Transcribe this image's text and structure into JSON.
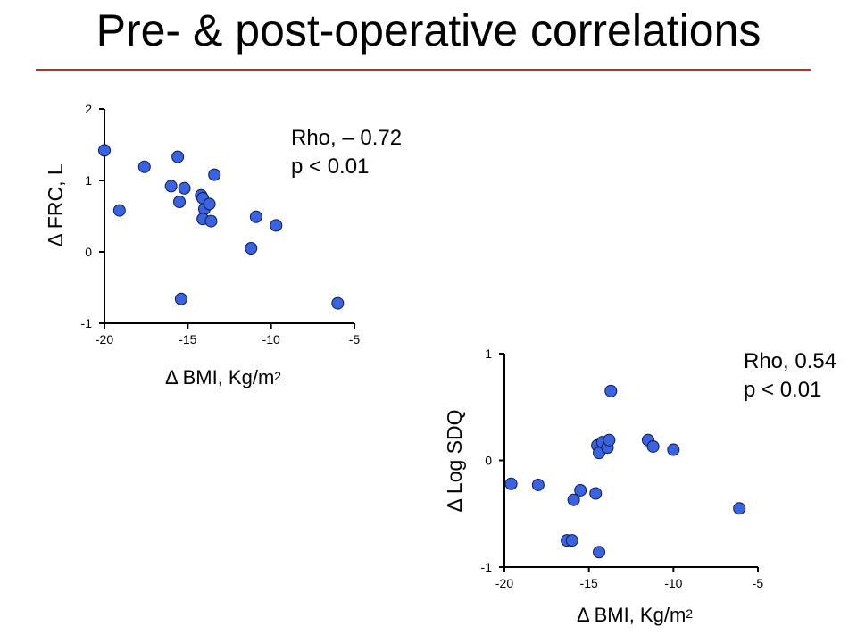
{
  "title": "Pre- & post-operative correlations",
  "colors": {
    "rule": "#c0282d",
    "marker": "#3b63e0",
    "marker_edge": "#0d1a4a"
  },
  "chart_data": [
    {
      "type": "scatter",
      "xlabel": "Δ BMI, Kg/m",
      "xlabel_sup": "2",
      "ylabel": "Δ FRC, L",
      "xlim": [
        -20,
        -5
      ],
      "ylim": [
        -1,
        2
      ],
      "xticks": [
        "-20",
        "-15",
        "-10",
        "-5"
      ],
      "yticks": [
        "-1",
        "0",
        "1",
        "2"
      ],
      "annotation": [
        "Rho, – 0.72",
        "p < 0.01"
      ],
      "points": [
        {
          "x": -20.0,
          "y": 1.42
        },
        {
          "x": -19.1,
          "y": 0.58
        },
        {
          "x": -17.6,
          "y": 1.19
        },
        {
          "x": -15.6,
          "y": 1.33
        },
        {
          "x": -16.0,
          "y": 0.92
        },
        {
          "x": -15.2,
          "y": 0.89
        },
        {
          "x": -15.5,
          "y": 0.7
        },
        {
          "x": -14.2,
          "y": 0.79
        },
        {
          "x": -14.1,
          "y": 0.75
        },
        {
          "x": -14.0,
          "y": 0.6
        },
        {
          "x": -13.7,
          "y": 0.67
        },
        {
          "x": -14.1,
          "y": 0.46
        },
        {
          "x": -13.6,
          "y": 0.43
        },
        {
          "x": -13.4,
          "y": 1.08
        },
        {
          "x": -15.4,
          "y": -0.66
        },
        {
          "x": -10.9,
          "y": 0.49
        },
        {
          "x": -11.2,
          "y": 0.05
        },
        {
          "x": -9.7,
          "y": 0.37
        },
        {
          "x": -6.0,
          "y": -0.72
        }
      ]
    },
    {
      "type": "scatter",
      "xlabel": "Δ BMI, Kg/m",
      "xlabel_sup": "2",
      "ylabel": "Δ Log SDQ",
      "xlim": [
        -20,
        -5
      ],
      "ylim": [
        -1,
        1
      ],
      "xticks": [
        "-20",
        "-15",
        "-10",
        "-5"
      ],
      "yticks": [
        "-1",
        "0",
        "1"
      ],
      "annotation": [
        "Rho, 0.54",
        "p < 0.01"
      ],
      "points": [
        {
          "x": -19.6,
          "y": -0.22
        },
        {
          "x": -18.0,
          "y": -0.23
        },
        {
          "x": -16.3,
          "y": -0.75
        },
        {
          "x": -16.0,
          "y": -0.75
        },
        {
          "x": -15.5,
          "y": -0.28
        },
        {
          "x": -15.9,
          "y": -0.37
        },
        {
          "x": -14.6,
          "y": -0.31
        },
        {
          "x": -14.5,
          "y": 0.14
        },
        {
          "x": -14.4,
          "y": 0.07
        },
        {
          "x": -14.2,
          "y": 0.17
        },
        {
          "x": -13.9,
          "y": 0.12
        },
        {
          "x": -13.8,
          "y": 0.19
        },
        {
          "x": -13.7,
          "y": 0.65
        },
        {
          "x": -14.4,
          "y": -0.86
        },
        {
          "x": -11.5,
          "y": 0.19
        },
        {
          "x": -11.2,
          "y": 0.13
        },
        {
          "x": -10.0,
          "y": 0.1
        },
        {
          "x": -6.1,
          "y": -0.45
        }
      ]
    }
  ]
}
